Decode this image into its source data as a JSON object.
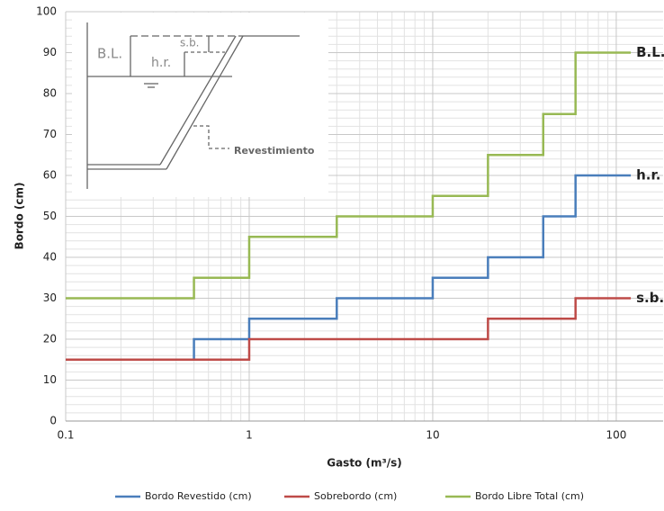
{
  "chart_data": {
    "type": "line",
    "x_label": "Gasto (m³/s)",
    "y_label": "Bordo (cm)",
    "xscale": "log",
    "xlim": [
      0.1,
      180
    ],
    "xticks": [
      0.1,
      1,
      10,
      100
    ],
    "ylim": [
      0,
      100
    ],
    "yticks": [
      0,
      10,
      20,
      30,
      40,
      50,
      60,
      70,
      80,
      90,
      100
    ],
    "grid": true,
    "legend": "bottom",
    "series": [
      {
        "name": "Bordo Revestido (cm)",
        "color": "#4a7ebb",
        "end_label": "h.r.",
        "x": [
          0.1,
          0.5,
          0.5,
          1,
          1,
          3,
          3,
          10,
          10,
          20,
          20,
          40,
          40,
          60,
          60,
          120
        ],
        "values": [
          15,
          15,
          20,
          20,
          25,
          25,
          30,
          30,
          35,
          35,
          40,
          40,
          50,
          50,
          60,
          60
        ]
      },
      {
        "name": "Sobrebordo (cm)",
        "color": "#be4b48",
        "end_label": "s.b.",
        "x": [
          0.1,
          1,
          1,
          20,
          20,
          60,
          60,
          120
        ],
        "values": [
          15,
          15,
          20,
          20,
          25,
          25,
          30,
          30
        ]
      },
      {
        "name": "Bordo Libre Total (cm)",
        "color": "#98b954",
        "end_label": "B.L.",
        "x": [
          0.1,
          0.5,
          0.5,
          1,
          1,
          3,
          3,
          10,
          10,
          20,
          20,
          40,
          40,
          60,
          60,
          120
        ],
        "values": [
          30,
          30,
          35,
          35,
          45,
          45,
          50,
          50,
          55,
          55,
          65,
          65,
          75,
          75,
          90,
          90
        ]
      }
    ],
    "inset_labels": [
      "B.L.",
      "h.r.",
      "s.b.",
      "Revestimiento"
    ]
  }
}
